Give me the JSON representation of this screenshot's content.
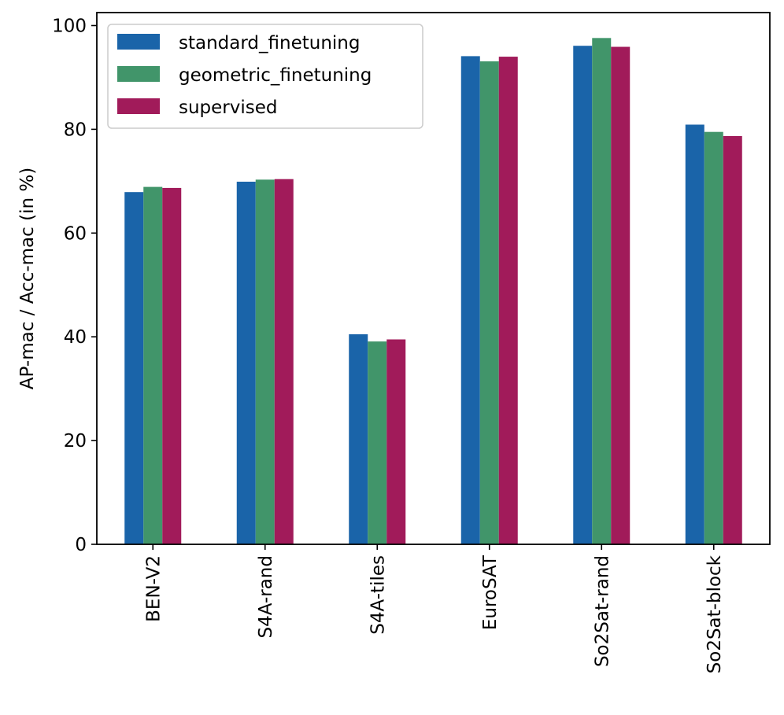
{
  "chart_data": {
    "type": "bar",
    "title": "",
    "xlabel": "",
    "ylabel": "AP-mac / Acc-mac (in %)",
    "ylim": [
      0,
      102.5
    ],
    "yticks": [
      0,
      20,
      40,
      60,
      80,
      100
    ],
    "grid": false,
    "legend_position": "top-left",
    "categories": [
      "BEN-V2",
      "S4A-rand",
      "S4A-tiles",
      "EuroSAT",
      "So2Sat-rand",
      "So2Sat-block"
    ],
    "series": [
      {
        "name": "standard_finetuning",
        "color": "#1a64a9",
        "values": [
          67.9,
          69.9,
          40.5,
          94.1,
          96.1,
          80.9
        ]
      },
      {
        "name": "geometric_finetuning",
        "color": "#41956a",
        "values": [
          68.9,
          70.3,
          39.1,
          93.1,
          97.6,
          79.5
        ]
      },
      {
        "name": "supervised",
        "color": "#a11b5a",
        "values": [
          68.7,
          70.4,
          39.5,
          94.0,
          95.9,
          78.7
        ]
      }
    ]
  }
}
